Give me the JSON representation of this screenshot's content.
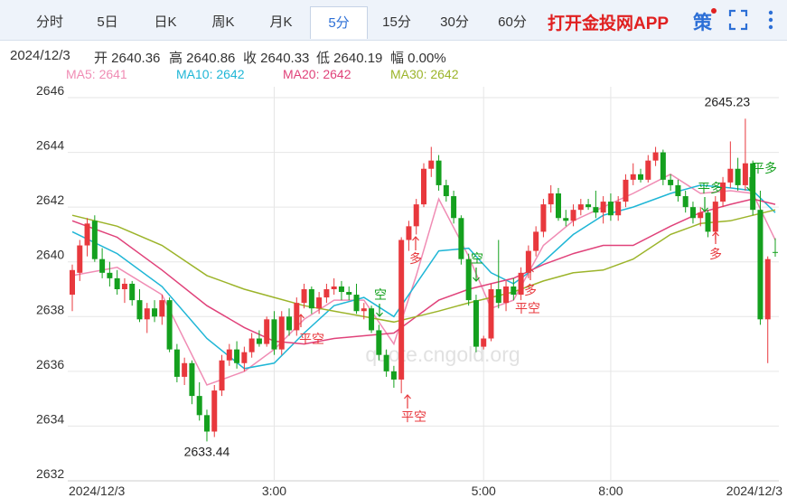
{
  "tabs": [
    "分时",
    "5日",
    "日K",
    "周K",
    "月K",
    "5分",
    "15分",
    "30分",
    "60分"
  ],
  "active_tab": 5,
  "brand": "打开金投网APP",
  "strategy_button": "策",
  "info": [
    "2024/12/3",
    "开 2640.36",
    "高 2640.86",
    "收 2640.33",
    "低 2640.19",
    "幅 0.00%"
  ],
  "watermark": "quote.cngold.org",
  "chart_data": {
    "type": "candlestick",
    "up_color": "#e8383d",
    "down_color": "#14a01e",
    "grid": true,
    "ylim": [
      2632,
      2646
    ],
    "yticks": [
      2632,
      2634,
      2636,
      2638,
      2640,
      2642,
      2644,
      2646
    ],
    "categories": [
      "2024/12/3",
      null,
      null,
      null,
      null,
      null,
      null,
      null,
      null,
      null,
      null,
      null,
      null,
      null,
      null,
      null,
      null,
      null,
      null,
      null,
      null,
      null,
      null,
      null,
      null,
      null,
      null,
      "3:00",
      null,
      null,
      null,
      null,
      null,
      null,
      null,
      null,
      null,
      null,
      null,
      null,
      null,
      null,
      null,
      null,
      null,
      null,
      null,
      null,
      null,
      null,
      null,
      null,
      null,
      null,
      null,
      "5:00",
      null,
      null,
      null,
      null,
      null,
      null,
      null,
      null,
      null,
      null,
      null,
      null,
      null,
      null,
      null,
      null,
      "8:00",
      null,
      null,
      null,
      null,
      null,
      null,
      null,
      null,
      null,
      null,
      null,
      null,
      null,
      null,
      null,
      null,
      null,
      null,
      null,
      null,
      null,
      "2024/12/3"
    ],
    "open": [
      2638.8,
      2639.6,
      2640.6,
      2641.5,
      2640.1,
      2639.6,
      2639.4,
      2639,
      2639.2,
      2638.6,
      2637.9,
      2638.3,
      2638,
      2638.6,
      2636.8,
      2635.8,
      2636.3,
      2635.1,
      2634.4,
      2633.8,
      2635.3,
      2636.4,
      2636.8,
      2636.3,
      2636.7,
      2637.2,
      2637,
      2637.9,
      2636.8,
      2638,
      2637.5,
      2638.5,
      2639,
      2638.3,
      2638.7,
      2639,
      2639.1,
      2638.9,
      2638.8,
      2638.2,
      2638.3,
      2637.5,
      2636.6,
      2636,
      2635.7,
      2640.8,
      2641.3,
      2642.1,
      2643.4,
      2643.7,
      2642.8,
      2642.4,
      2641.6,
      2640.1,
      2638.6,
      2636.9,
      2637.2,
      2639,
      2638.5,
      2639.1,
      2638.8,
      2639.6,
      2640.4,
      2641.1,
      2642.1,
      2642.5,
      2641.6,
      2641.5,
      2641.9,
      2642.1,
      2642,
      2641.8,
      2642.2,
      2641.7,
      2642.2,
      2643,
      2643.2,
      2643,
      2643.7,
      2644,
      2643,
      2642.8,
      2642.4,
      2642,
      2641.6,
      2641.8,
      2641.1,
      2642.2,
      2642.9,
      2643.4,
      2642.8,
      2643.6,
      2641.9,
      2637.9,
      2640.36
    ],
    "high": [
      2639.9,
      2640.8,
      2641.6,
      2641.7,
      2640.5,
      2640,
      2639.7,
      2639.4,
      2639.3,
      2639,
      2638.5,
      2638.6,
      2638.8,
      2638.7,
      2637,
      2636.5,
      2636.4,
      2635.6,
      2634.6,
      2635.5,
      2636.6,
      2637,
      2637.1,
      2636.9,
      2637.4,
      2637.5,
      2638,
      2638.2,
      2638.2,
      2638.3,
      2638.7,
      2639.2,
      2639.1,
      2638.9,
      2639.2,
      2639.4,
      2639.3,
      2639.1,
      2639.2,
      2638.5,
      2638.4,
      2637.7,
      2636.8,
      2636.2,
      2640.9,
      2641.5,
      2642.3,
      2643.6,
      2644.2,
      2643.9,
      2643,
      2642.6,
      2641.7,
      2640.3,
      2638.8,
      2637.3,
      2639.2,
      2640.8,
      2639.3,
      2639.4,
      2639.8,
      2640.6,
      2641.3,
      2642.3,
      2642.8,
      2642.7,
      2641.9,
      2642.1,
      2642.3,
      2642.3,
      2642.6,
      2642.4,
      2642.5,
      2642.4,
      2643.2,
      2643.6,
      2643.4,
      2643.9,
      2644.2,
      2644.1,
      2643.2,
      2643,
      2642.6,
      2642.2,
      2642,
      2641.9,
      2642.4,
      2643.1,
      2644.4,
      2643.8,
      2645.23,
      2643.7,
      2642.6,
      2640.2,
      2640.86
    ],
    "low": [
      2638.2,
      2639.3,
      2640.2,
      2640,
      2639.4,
      2639.1,
      2638.8,
      2638.5,
      2638.4,
      2637.8,
      2637.4,
      2637.8,
      2637.7,
      2636.7,
      2635.6,
      2635.5,
      2634.8,
      2634.2,
      2633.44,
      2633.6,
      2635.1,
      2636.2,
      2636.1,
      2636,
      2636.5,
      2636.9,
      2636.9,
      2636.6,
      2636.6,
      2637.3,
      2637.3,
      2638.3,
      2638.1,
      2638.1,
      2638.5,
      2638.8,
      2638.6,
      2638.6,
      2638.1,
      2637.9,
      2637.4,
      2636.4,
      2635.8,
      2635.4,
      2635.2,
      2640.4,
      2641,
      2642,
      2643.1,
      2642.6,
      2642.2,
      2641.4,
      2639.9,
      2638.4,
      2636.7,
      2636.8,
      2637.1,
      2638.3,
      2638.2,
      2638.6,
      2638.6,
      2639.4,
      2640.2,
      2640.9,
      2641.8,
      2641.5,
      2641.3,
      2641.3,
      2641.7,
      2641.9,
      2641.6,
      2641.4,
      2641.5,
      2641.5,
      2642,
      2642.8,
      2642.9,
      2642.9,
      2643.5,
      2642.8,
      2642.6,
      2642.2,
      2641.8,
      2641.4,
      2641.3,
      2640.9,
      2640.8,
      2642,
      2642.7,
      2642.6,
      2642.6,
      2641.7,
      2637.7,
      2636.3,
      2640.19
    ],
    "close": [
      2639.7,
      2640.6,
      2641.4,
      2640.1,
      2639.6,
      2639.4,
      2639,
      2639.2,
      2638.6,
      2637.9,
      2638.3,
      2638,
      2638.6,
      2636.8,
      2635.8,
      2636.3,
      2635.1,
      2634.4,
      2633.8,
      2635.3,
      2636.4,
      2636.8,
      2636.3,
      2636.7,
      2637.2,
      2637,
      2637.9,
      2636.8,
      2638,
      2637.5,
      2638.5,
      2639,
      2638.3,
      2638.7,
      2639,
      2639.1,
      2638.9,
      2638.8,
      2638.2,
      2638.3,
      2637.5,
      2636.6,
      2636,
      2635.7,
      2640.8,
      2641.3,
      2642.1,
      2643.4,
      2643.7,
      2642.8,
      2642.4,
      2641.6,
      2640.1,
      2638.6,
      2636.9,
      2637.2,
      2639,
      2638.5,
      2639.1,
      2638.8,
      2639.6,
      2640.4,
      2641.1,
      2642.1,
      2642.5,
      2641.6,
      2641.5,
      2641.9,
      2642.1,
      2642,
      2641.8,
      2642.2,
      2641.7,
      2642.2,
      2643,
      2643.2,
      2643,
      2643.7,
      2644,
      2643,
      2642.8,
      2642.4,
      2642,
      2641.6,
      2641.8,
      2641.1,
      2642.2,
      2642.9,
      2643.4,
      2642.8,
      2643.6,
      2641.9,
      2637.9,
      2640.1,
      2640.33
    ],
    "series": [
      {
        "name": "MA5: 2641",
        "color": "#f08cb4",
        "x": [
          0,
          6,
          12,
          18,
          23,
          27,
          31,
          35,
          39,
          43,
          46,
          49,
          53,
          56,
          59,
          63,
          67,
          71,
          75,
          80,
          84,
          88,
          91,
          94
        ],
        "values": [
          2639.5,
          2639.8,
          2638.8,
          2635.5,
          2636,
          2636.8,
          2637.9,
          2638.6,
          2638.6,
          2637,
          2639.5,
          2642.3,
          2640.2,
          2638.3,
          2638.6,
          2640.6,
          2641.5,
          2642,
          2642.5,
          2643.2,
          2642.5,
          2642.6,
          2642.5,
          2640.8
        ]
      },
      {
        "name": "MA10: 2642",
        "color": "#1fb6d6",
        "x": [
          0,
          6,
          12,
          18,
          23,
          27,
          31,
          35,
          39,
          43,
          46,
          49,
          53,
          56,
          59,
          63,
          67,
          71,
          75,
          80,
          84,
          88,
          91,
          94
        ],
        "values": [
          2641.1,
          2640.3,
          2639.1,
          2637.2,
          2636.1,
          2636.3,
          2637.4,
          2638.4,
          2638.7,
          2638,
          2639.2,
          2640.4,
          2640.5,
          2639.6,
          2639.2,
          2640,
          2641,
          2641.7,
          2642,
          2642.5,
          2642.8,
          2642.7,
          2642.6,
          2641.8
        ]
      },
      {
        "name": "MA20: 2642",
        "color": "#e0427a",
        "x": [
          0,
          6,
          12,
          18,
          23,
          27,
          31,
          35,
          39,
          43,
          46,
          49,
          53,
          56,
          59,
          63,
          67,
          71,
          75,
          80,
          84,
          88,
          91,
          94
        ],
        "values": [
          2641.5,
          2640.9,
          2639.7,
          2638.4,
          2637.6,
          2637.1,
          2637,
          2637.2,
          2637.3,
          2637.4,
          2638,
          2638.6,
          2639,
          2639.2,
          2639.4,
          2639.9,
          2640.3,
          2640.6,
          2640.6,
          2641.3,
          2641.8,
          2642.1,
          2642.3,
          2642.1
        ]
      },
      {
        "name": "MA30: 2642",
        "color": "#9cb42a",
        "x": [
          0,
          6,
          12,
          18,
          23,
          27,
          31,
          35,
          39,
          43,
          46,
          49,
          53,
          56,
          59,
          63,
          67,
          71,
          75,
          80,
          84,
          88,
          91,
          94
        ],
        "values": [
          2641.7,
          2641.3,
          2640.6,
          2639.5,
          2639,
          2638.7,
          2638.4,
          2638.2,
          2638,
          2637.8,
          2638,
          2638.2,
          2638.5,
          2638.7,
          2638.9,
          2639.3,
          2639.6,
          2639.7,
          2640.1,
          2641,
          2641.4,
          2641.5,
          2641.7,
          2641.9
        ]
      }
    ],
    "annotations": [
      {
        "text": "平空",
        "color": "#e8383d"
      },
      {
        "text": "空",
        "color": "#14a01e"
      },
      {
        "text": "平空",
        "color": "#e8383d"
      },
      {
        "text": "多",
        "color": "#e8383d"
      },
      {
        "text": "空",
        "color": "#14a01e"
      },
      {
        "text": "多",
        "color": "#e8383d"
      },
      {
        "text": "平空",
        "color": "#e8383d"
      },
      {
        "text": "平多",
        "color": "#14a01e"
      },
      {
        "text": "多",
        "color": "#e8383d"
      },
      {
        "text": "平多",
        "color": "#14a01e"
      }
    ]
  }
}
